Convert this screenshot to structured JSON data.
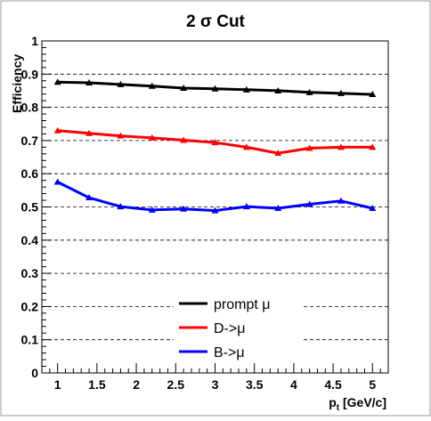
{
  "chart_data": {
    "type": "line",
    "title": "2 σ Cut",
    "xlabel": "p",
    "xlabel_sub": "t",
    "xlabel_unit": " [GeV/c]",
    "ylabel": "Efficiency",
    "xlim": [
      0.8,
      5.2
    ],
    "ylim": [
      0,
      1
    ],
    "x_ticks": [
      "1",
      "1.5",
      "2",
      "2.5",
      "3",
      "3.5",
      "4",
      "4.5",
      "5"
    ],
    "y_ticks": [
      "0",
      "0.1",
      "0.2",
      "0.3",
      "0.4",
      "0.5",
      "0.6",
      "0.7",
      "0.8",
      "0.9",
      "1"
    ],
    "grid": "horizontal-dashed",
    "legend_position": "bottom-center",
    "x": [
      1.0,
      1.4,
      1.8,
      2.2,
      2.6,
      3.0,
      3.4,
      3.8,
      4.2,
      4.6,
      5.0
    ],
    "series": [
      {
        "name": "prompt μ",
        "color": "#000000",
        "values": [
          0.876,
          0.874,
          0.869,
          0.864,
          0.858,
          0.856,
          0.853,
          0.85,
          0.845,
          0.842,
          0.839
        ]
      },
      {
        "name": "D->μ",
        "color": "#ff0000",
        "values": [
          0.73,
          0.722,
          0.714,
          0.708,
          0.701,
          0.694,
          0.68,
          0.662,
          0.677,
          0.68,
          0.68
        ]
      },
      {
        "name": "B->μ",
        "color": "#0000ff",
        "values": [
          0.575,
          0.528,
          0.501,
          0.491,
          0.494,
          0.489,
          0.501,
          0.496,
          0.508,
          0.518,
          0.496
        ]
      }
    ]
  }
}
